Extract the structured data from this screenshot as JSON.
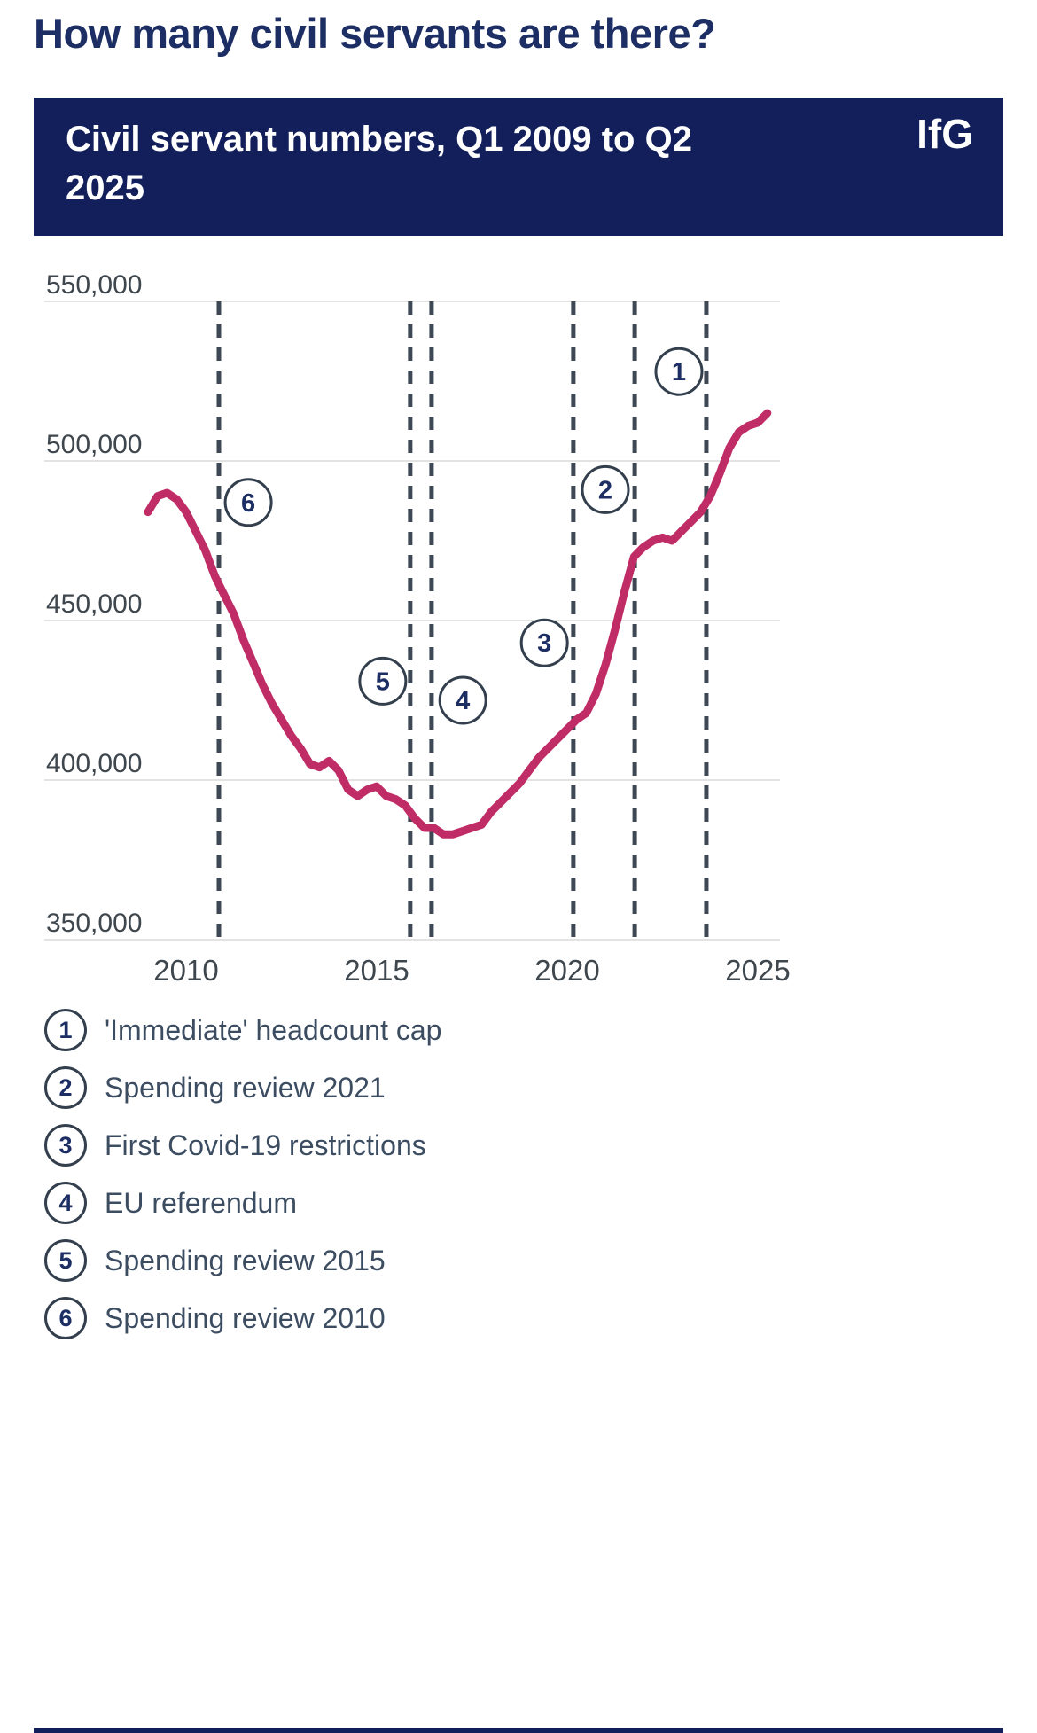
{
  "page": {
    "title": "How many civil servants are there?"
  },
  "header": {
    "title": "Civil servant numbers, Q1 2009 to Q2 2025",
    "logo": "IfG",
    "bg_color": "#121f5a",
    "text_color": "#ffffff"
  },
  "chart_data": {
    "type": "line",
    "title": "Civil servant numbers, Q1 2009 to Q2 2025",
    "ylim": [
      350000,
      550000
    ],
    "yticks": [
      550000,
      500000,
      450000,
      400000,
      350000
    ],
    "ytick_labels": [
      "550,000",
      "500,000",
      "450,000",
      "400,000",
      "350,000"
    ],
    "xticks": [
      2010,
      2015,
      2020,
      2025
    ],
    "xtick_labels": [
      "2010",
      "2015",
      "2020",
      "2025"
    ],
    "grid": "horizontal",
    "legend_position": "below",
    "line_color": "#bf2c66",
    "event_line_color": "#3d4854",
    "series": [
      {
        "name": "Civil servant numbers",
        "x": [
          2009.0,
          2009.25,
          2009.5,
          2009.75,
          2010.0,
          2010.25,
          2010.5,
          2010.75,
          2011.0,
          2011.25,
          2011.5,
          2011.75,
          2012.0,
          2012.25,
          2012.5,
          2012.75,
          2013.0,
          2013.25,
          2013.5,
          2013.75,
          2014.0,
          2014.25,
          2014.5,
          2014.75,
          2015.0,
          2015.25,
          2015.5,
          2015.75,
          2016.0,
          2016.25,
          2016.5,
          2016.75,
          2017.0,
          2017.25,
          2017.5,
          2017.75,
          2018.0,
          2018.25,
          2018.5,
          2018.75,
          2019.0,
          2019.25,
          2019.5,
          2019.75,
          2020.0,
          2020.25,
          2020.5,
          2020.75,
          2021.0,
          2021.25,
          2021.5,
          2021.75,
          2022.0,
          2022.25,
          2022.5,
          2022.75,
          2023.0,
          2023.25,
          2023.5,
          2023.75,
          2024.0,
          2024.25,
          2024.5,
          2024.75,
          2025.0,
          2025.25
        ],
        "values": [
          484000,
          489000,
          490000,
          488000,
          484000,
          478000,
          472000,
          464000,
          458000,
          452000,
          444000,
          437000,
          430000,
          424000,
          419000,
          414000,
          410000,
          405000,
          404000,
          406000,
          403000,
          397000,
          395000,
          397000,
          398000,
          395000,
          394000,
          392000,
          388000,
          385000,
          385000,
          383000,
          383000,
          384000,
          385000,
          386000,
          390000,
          393000,
          396000,
          399000,
          403000,
          407000,
          410000,
          413000,
          416000,
          419000,
          421000,
          427000,
          436000,
          447000,
          459000,
          470000,
          473000,
          475000,
          476000,
          475000,
          478000,
          481000,
          484000,
          489000,
          496000,
          504000,
          509000,
          511000,
          512000,
          515000
        ]
      }
    ],
    "event_lines": [
      {
        "num": "6",
        "year": 2010.86,
        "label": "Spending review 2010"
      },
      {
        "num": "5",
        "year": 2015.88,
        "label": "Spending review 2015"
      },
      {
        "num": "4",
        "year": 2016.44,
        "label": "EU referendum"
      },
      {
        "num": "3",
        "year": 2020.16,
        "label": "First Covid-19 restrictions"
      },
      {
        "num": "2",
        "year": 2021.77,
        "label": "Spending review 2021"
      },
      {
        "num": "1",
        "year": 2023.65,
        "label": "'Immediate' headcount cap"
      }
    ],
    "markers": [
      {
        "num": "1",
        "year": 2022.93,
        "value": 528000
      },
      {
        "num": "2",
        "year": 2021.0,
        "value": 491000
      },
      {
        "num": "3",
        "year": 2019.4,
        "value": 443000
      },
      {
        "num": "4",
        "year": 2017.26,
        "value": 425000
      },
      {
        "num": "5",
        "year": 2015.16,
        "value": 431000
      },
      {
        "num": "6",
        "year": 2011.63,
        "value": 487000
      }
    ]
  },
  "legend": {
    "items": [
      {
        "num": "1",
        "label": "'Immediate' headcount cap"
      },
      {
        "num": "2",
        "label": "Spending review 2021"
      },
      {
        "num": "3",
        "label": "First Covid-19 restrictions"
      },
      {
        "num": "4",
        "label": "EU referendum"
      },
      {
        "num": "5",
        "label": "Spending review 2015"
      },
      {
        "num": "6",
        "label": "Spending review 2010"
      }
    ]
  }
}
